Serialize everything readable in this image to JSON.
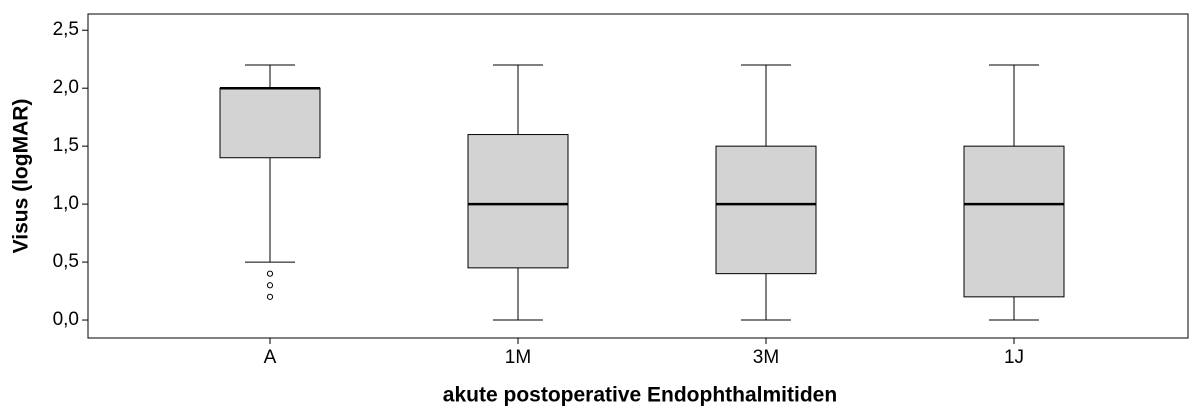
{
  "chart_data": {
    "type": "box",
    "xlabel": "akute postoperative Endophthalmitiden",
    "ylabel": "Visus (logMAR)",
    "categories": [
      "A",
      "1M",
      "3M",
      "1J"
    ],
    "color": "#d3d3d3",
    "low": [
      0.5,
      0,
      0,
      0
    ],
    "q1": [
      1.4,
      0.45,
      0.4,
      0.2
    ],
    "median": [
      2.0,
      1.0,
      1.0,
      1.0
    ],
    "q3": [
      2.0,
      1.6,
      1.5,
      1.5
    ],
    "high": [
      2.2,
      2.2,
      2.2,
      2.2
    ],
    "outliers": [
      [
        0.4,
        0.3,
        0.2
      ],
      [],
      [],
      []
    ],
    "ylim": [
      -0.155,
      2.64
    ],
    "yticks": [
      {
        "value": 0,
        "label": "0,0"
      },
      {
        "value": 0.5,
        "label": "0,5"
      },
      {
        "value": 1,
        "label": "1,0"
      },
      {
        "value": 1.5,
        "label": "1,5"
      },
      {
        "value": 2,
        "label": "2,0"
      },
      {
        "value": 2.5,
        "label": "2,5"
      }
    ]
  }
}
